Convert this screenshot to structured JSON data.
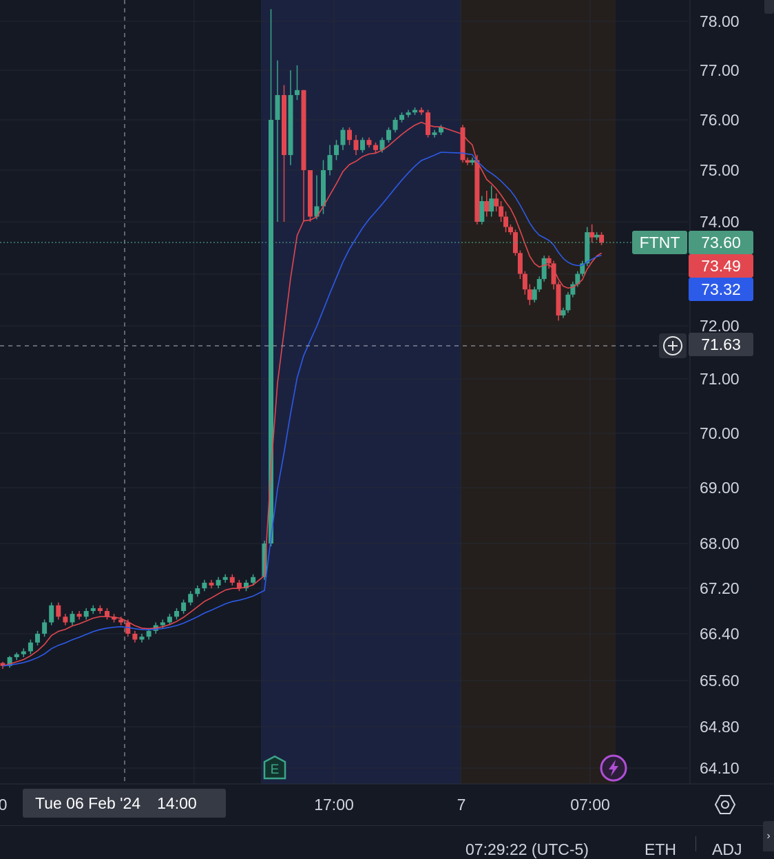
{
  "chart_data": {
    "type": "candlestick",
    "symbol": "FTNT",
    "y_axis": {
      "ticks": [
        "78.00",
        "77.00",
        "76.00",
        "75.00",
        "74.00",
        "72.00",
        "71.00",
        "70.00",
        "69.00",
        "68.00",
        "67.20",
        "66.40",
        "65.60",
        "64.80",
        "64.10"
      ],
      "ylim": [
        64.0,
        78.3
      ]
    },
    "x_axis": {
      "ticks": [
        {
          "label": "0",
          "x": "Tue 06 Feb '24 11:00"
        },
        {
          "label": "17:00",
          "x": "Tue 06 Feb '24 17:00"
        },
        {
          "label": "7",
          "x": "Wed 07 Feb '24 00:00"
        },
        {
          "label": "07:00",
          "x": "Wed 07 Feb '24 07:00"
        }
      ],
      "crosshair_label": {
        "date": "Tue 06 Feb '24",
        "time": "14:00"
      }
    },
    "sessions": [
      {
        "name": "post-market",
        "from": "16:00",
        "to": "20:00",
        "color": "#1b2240"
      },
      {
        "name": "pre-market",
        "from": "04:00",
        "to": "09:30",
        "color": "#241f1d"
      }
    ],
    "candles": [
      [
        65.9,
        65.85,
        65.92,
        65.8
      ],
      [
        65.85,
        66.0,
        66.02,
        65.82
      ],
      [
        66.0,
        66.05,
        66.08,
        65.95
      ],
      [
        66.05,
        66.1,
        66.15,
        66.0
      ],
      [
        66.1,
        66.25,
        66.3,
        66.05
      ],
      [
        66.25,
        66.4,
        66.45,
        66.2
      ],
      [
        66.4,
        66.6,
        66.65,
        66.35
      ],
      [
        66.6,
        66.9,
        66.95,
        66.55
      ],
      [
        66.9,
        66.7,
        66.95,
        66.65
      ],
      [
        66.7,
        66.6,
        66.75,
        66.55
      ],
      [
        66.6,
        66.75,
        66.8,
        66.55
      ],
      [
        66.75,
        66.7,
        66.8,
        66.65
      ],
      [
        66.7,
        66.8,
        66.85,
        66.65
      ],
      [
        66.8,
        66.85,
        66.9,
        66.75
      ],
      [
        66.85,
        66.8,
        66.9,
        66.75
      ],
      [
        66.8,
        66.7,
        66.85,
        66.65
      ],
      [
        66.7,
        66.65,
        66.75,
        66.6
      ],
      [
        66.65,
        66.6,
        66.7,
        66.55
      ],
      [
        66.6,
        66.4,
        66.65,
        66.35
      ],
      [
        66.4,
        66.3,
        66.45,
        66.25
      ],
      [
        66.3,
        66.35,
        66.4,
        66.25
      ],
      [
        66.35,
        66.45,
        66.5,
        66.3
      ],
      [
        66.45,
        66.55,
        66.6,
        66.4
      ],
      [
        66.55,
        66.6,
        66.65,
        66.5
      ],
      [
        66.6,
        66.7,
        66.75,
        66.55
      ],
      [
        66.7,
        66.8,
        66.85,
        66.65
      ],
      [
        66.8,
        66.95,
        67.0,
        66.75
      ],
      [
        66.95,
        67.1,
        67.15,
        66.9
      ],
      [
        67.1,
        67.2,
        67.25,
        67.05
      ],
      [
        67.2,
        67.3,
        67.35,
        67.15
      ],
      [
        67.3,
        67.25,
        67.35,
        67.2
      ],
      [
        67.25,
        67.35,
        67.4,
        67.2
      ],
      [
        67.35,
        67.4,
        67.45,
        67.3
      ],
      [
        67.4,
        67.3,
        67.45,
        67.25
      ],
      [
        67.3,
        67.2,
        67.35,
        67.15
      ],
      [
        67.2,
        67.3,
        67.35,
        67.15
      ],
      [
        67.3,
        67.4,
        67.45,
        67.25
      ],
      [
        67.4,
        68.0,
        68.05,
        67.35
      ],
      [
        68.0,
        76.0,
        78.25,
        67.95
      ],
      [
        76.0,
        76.5,
        77.2,
        74.0
      ],
      [
        76.5,
        75.3,
        76.7,
        74.0
      ],
      [
        75.3,
        76.5,
        77.0,
        75.1
      ],
      [
        76.5,
        76.6,
        77.1,
        76.4
      ],
      [
        76.6,
        75.0,
        76.6,
        74.0
      ],
      [
        75.0,
        74.1,
        75.0,
        74.0
      ],
      [
        74.1,
        74.3,
        74.9,
        74.05
      ],
      [
        74.3,
        75.0,
        75.2,
        74.15
      ],
      [
        75.0,
        75.3,
        75.5,
        74.9
      ],
      [
        75.3,
        75.5,
        75.6,
        75.2
      ],
      [
        75.5,
        75.8,
        75.85,
        75.4
      ],
      [
        75.8,
        75.6,
        75.85,
        75.5
      ],
      [
        75.6,
        75.4,
        75.7,
        75.3
      ],
      [
        75.4,
        75.6,
        75.65,
        75.35
      ],
      [
        75.6,
        75.5,
        75.65,
        75.45
      ],
      [
        75.5,
        75.4,
        75.55,
        75.35
      ],
      [
        75.4,
        75.6,
        75.65,
        75.35
      ],
      [
        75.6,
        75.8,
        75.85,
        75.55
      ],
      [
        75.8,
        76.0,
        76.05,
        75.75
      ],
      [
        76.0,
        76.1,
        76.15,
        75.95
      ],
      [
        76.1,
        76.15,
        76.2,
        76.05
      ],
      [
        76.15,
        76.2,
        76.25,
        76.1
      ],
      [
        76.2,
        76.15,
        76.25,
        76.1
      ],
      [
        76.15,
        75.7,
        76.2,
        75.65
      ],
      [
        75.7,
        75.75,
        75.8,
        75.65
      ],
      [
        75.75,
        75.85,
        75.9,
        75.7
      ],
      [
        75.85,
        75.2,
        75.9,
        75.15
      ],
      [
        75.2,
        75.15,
        75.25,
        75.1
      ],
      [
        75.15,
        75.2,
        75.25,
        75.1
      ],
      [
        75.2,
        74.0,
        75.3,
        73.95
      ],
      [
        74.0,
        74.4,
        74.5,
        73.95
      ],
      [
        74.4,
        74.2,
        74.6,
        74.1
      ],
      [
        74.2,
        74.45,
        74.7,
        74.1
      ],
      [
        74.45,
        74.3,
        74.55,
        74.2
      ],
      [
        74.3,
        74.1,
        74.4,
        74.0
      ],
      [
        74.1,
        73.9,
        74.2,
        73.8
      ],
      [
        73.9,
        73.8,
        73.95,
        73.75
      ],
      [
        73.8,
        73.4,
        73.85,
        73.35
      ],
      [
        73.4,
        73.0,
        73.45,
        72.9
      ],
      [
        73.0,
        72.7,
        73.05,
        72.6
      ],
      [
        72.7,
        72.5,
        72.8,
        72.4
      ],
      [
        72.5,
        72.7,
        72.75,
        72.45
      ],
      [
        72.7,
        72.9,
        72.95,
        72.65
      ],
      [
        72.9,
        73.3,
        73.35,
        72.85
      ],
      [
        73.3,
        73.2,
        73.35,
        73.1
      ],
      [
        73.2,
        72.8,
        73.25,
        72.7
      ],
      [
        72.8,
        72.2,
        72.85,
        72.1
      ],
      [
        72.2,
        72.3,
        72.35,
        72.15
      ],
      [
        72.3,
        72.6,
        72.65,
        72.25
      ],
      [
        72.6,
        72.8,
        72.85,
        72.55
      ],
      [
        72.8,
        73.0,
        73.05,
        72.75
      ],
      [
        73.0,
        73.2,
        73.25,
        72.95
      ],
      [
        73.2,
        73.8,
        73.9,
        73.15
      ],
      [
        73.8,
        73.7,
        73.95,
        73.6
      ],
      [
        73.7,
        73.75,
        73.8,
        73.65
      ],
      [
        73.75,
        73.6,
        73.8,
        73.55
      ]
    ],
    "series": [
      {
        "color": "#e2474f",
        "last": "73.49"
      },
      {
        "color": "#2d5be9",
        "last": "73.32"
      }
    ],
    "crosshair": {
      "time": "Tue 06 Feb '24 14:00",
      "price": "71.63"
    },
    "grid": true,
    "last_price": "73.60"
  },
  "labels": {
    "symbol": "FTNT",
    "last_price": "73.60",
    "ema_red": "73.49",
    "ema_blue": "73.32",
    "crosshair_price": "71.63"
  },
  "time_axis": {
    "crosshair_date": "Tue 06 Feb '24",
    "crosshair_time": "14:00",
    "tick_0": "0",
    "tick_1": "17:00",
    "tick_2": "7",
    "tick_3": "07:00"
  },
  "badges": {
    "earnings": "E"
  },
  "status": {
    "time": "07:29:22 (UTC-5)",
    "session": "ETH",
    "adj": "ADJ"
  },
  "icons": {
    "settings": "gear-icon",
    "flash": "lightning-icon",
    "scroll": "chevron-right-icon"
  }
}
